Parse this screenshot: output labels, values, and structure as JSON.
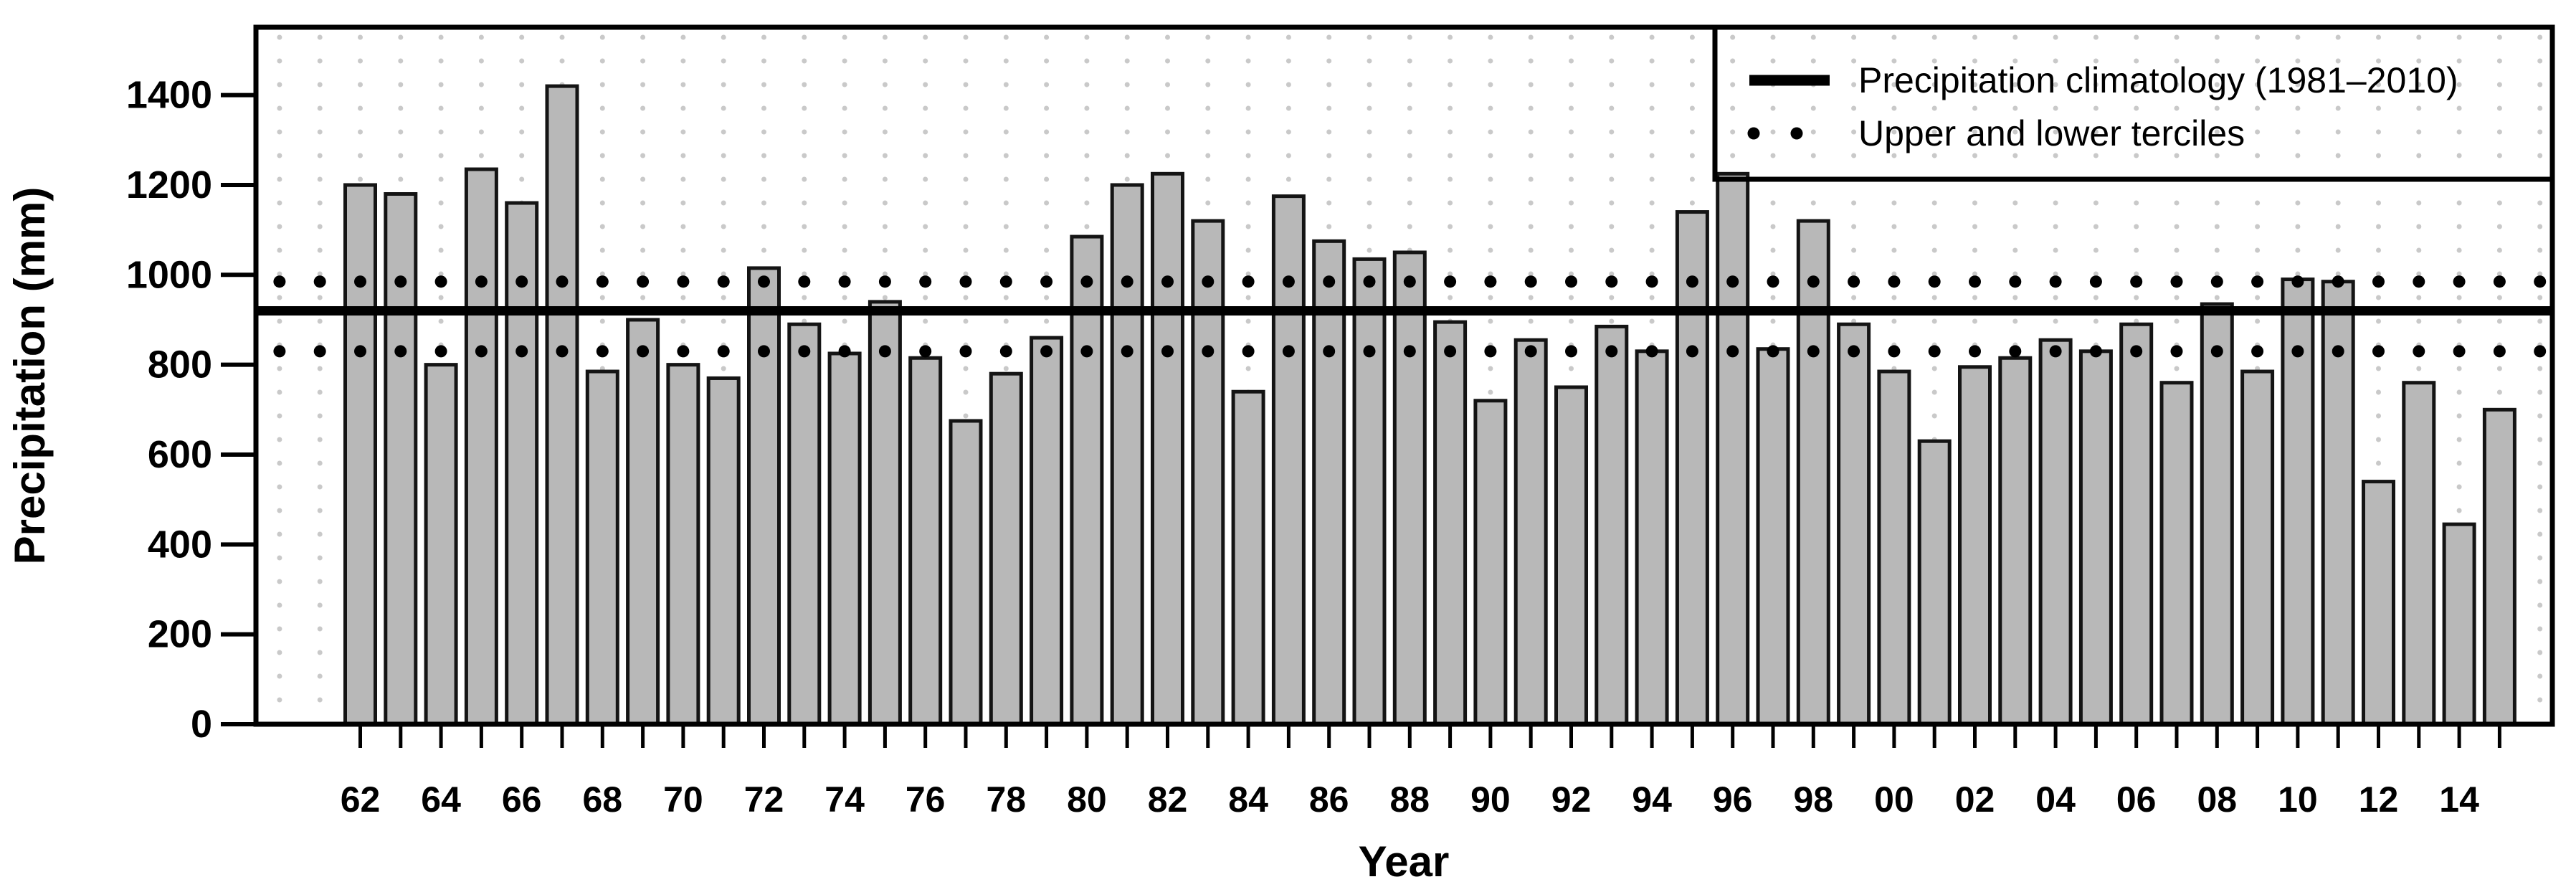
{
  "chart_data": {
    "type": "bar",
    "title": "",
    "xlabel": "Year",
    "ylabel": "Precipitation (mm)",
    "ylim": [
      0,
      1551
    ],
    "yticks": [
      0,
      200,
      400,
      600,
      800,
      1000,
      1200,
      1400
    ],
    "x_tick_labels": [
      "62",
      "64",
      "66",
      "68",
      "70",
      "72",
      "74",
      "76",
      "78",
      "80",
      "82",
      "84",
      "86",
      "88",
      "90",
      "92",
      "94",
      "96",
      "98",
      "00",
      "02",
      "04",
      "06",
      "08",
      "10",
      "12",
      "14"
    ],
    "categories": [
      1962,
      1963,
      1964,
      1965,
      1966,
      1967,
      1968,
      1969,
      1970,
      1971,
      1972,
      1973,
      1974,
      1975,
      1976,
      1977,
      1978,
      1979,
      1980,
      1981,
      1982,
      1983,
      1984,
      1985,
      1986,
      1987,
      1988,
      1989,
      1990,
      1991,
      1992,
      1993,
      1994,
      1995,
      1996,
      1997,
      1998,
      1999,
      2000,
      2001,
      2002,
      2003,
      2004,
      2005,
      2006,
      2007,
      2008,
      2009,
      2010,
      2011,
      2012,
      2013,
      2014,
      2015
    ],
    "values": [
      1200,
      1180,
      800,
      1235,
      1160,
      1420,
      785,
      900,
      800,
      770,
      1015,
      890,
      825,
      940,
      815,
      675,
      780,
      860,
      1085,
      1200,
      1225,
      1120,
      740,
      1175,
      1075,
      1035,
      1050,
      895,
      720,
      855,
      750,
      885,
      830,
      1140,
      1225,
      835,
      1120,
      890,
      785,
      630,
      795,
      815,
      855,
      830,
      890,
      760,
      935,
      785,
      990,
      985,
      540,
      760,
      445,
      700
    ],
    "reference_lines": {
      "climatology": 920,
      "upper_tercile": 985,
      "lower_tercile": 830
    },
    "legend": [
      {
        "label": "Precipitation climatology (1981–2010)",
        "style": "solid-line"
      },
      {
        "label": "Upper and lower terciles",
        "style": "dots"
      }
    ],
    "legend_position": "top-right",
    "grid": "faint-dotted-vertical-columns",
    "colors": {
      "bar_fill": "#b8b8b8",
      "bar_stroke": "#141414",
      "reference_black": "#000000",
      "background_dots": "#c9c9c9"
    }
  }
}
